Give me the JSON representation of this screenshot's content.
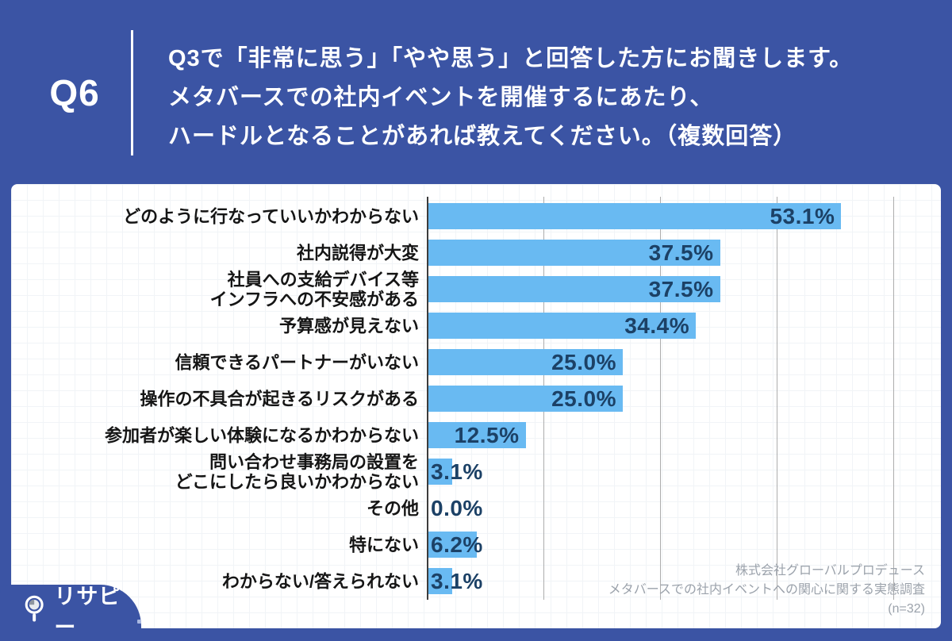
{
  "page": {
    "background": "#3B54A4"
  },
  "header": {
    "question_number": "Q6",
    "question_lines": [
      "Q3で「非常に思う」「やや思う」と回答した方にお聞きします。",
      "メタバースでの社内イベントを開催するにあたり、",
      "ハードルとなることがあれば教えてください。（複数回答）"
    ]
  },
  "chart_data": {
    "type": "bar",
    "orientation": "horizontal",
    "categories": [
      "どのように行なっていいかわからない",
      "社内説得が大変",
      "社員への支給デバイス等\nインフラへの不安感がある",
      "予算感が見えない",
      "信頼できるパートナーがいない",
      "操作の不具合が起きるリスクがある",
      "参加者が楽しい体験になるかわからない",
      "問い合わせ事務局の設置を\nどこにしたら良いかわからない",
      "その他",
      "特にない",
      "わからない/答えられない"
    ],
    "values": [
      53.1,
      37.5,
      37.5,
      34.4,
      25.0,
      25.0,
      12.5,
      3.1,
      0.0,
      6.2,
      3.1
    ],
    "value_labels": [
      "53.1%",
      "37.5%",
      "37.5%",
      "34.4%",
      "25.0%",
      "25.0%",
      "12.5%",
      "3.1%",
      "0.0%",
      "6.2%",
      "3.1%"
    ],
    "xlim": [
      0,
      60
    ],
    "gridline_step_percent": 15,
    "grid": true,
    "legend": false,
    "bar_color": "#69BAF2",
    "value_label_color": "#1C4166",
    "gridline_color": "#ADADAD",
    "axis_color": "#3C3C3C"
  },
  "footer": {
    "source_lines": [
      "株式会社グローバルプロデュース",
      "メタバースでの社内イベントへの関心に関する実態調査",
      "(n=32)"
    ]
  },
  "logo": {
    "text": "リサピー"
  }
}
